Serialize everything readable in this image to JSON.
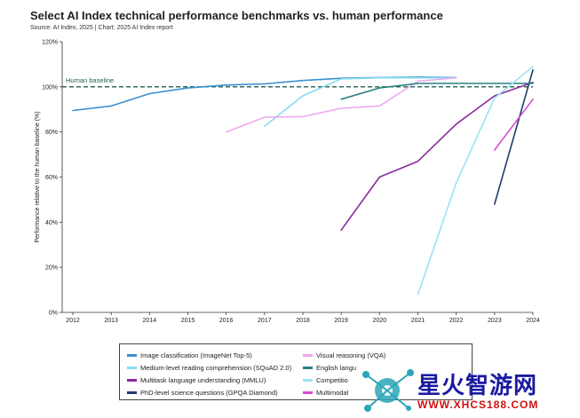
{
  "header": {
    "title": "Select AI Index technical performance benchmarks vs. human performance",
    "subtitle": "Source: AI Index, 2025 | Chart: 2025 AI Index report"
  },
  "chart_data": {
    "type": "line",
    "ylabel": "Performance relative to the human baseline (%)",
    "xlabel": "",
    "x": [
      2012,
      2013,
      2014,
      2015,
      2016,
      2017,
      2018,
      2019,
      2020,
      2021,
      2022,
      2023,
      2024
    ],
    "xticks": [
      "2012",
      "2013",
      "2014",
      "2015",
      "2016",
      "2017",
      "2018",
      "2019",
      "2020",
      "2021",
      "2022",
      "2023",
      "2024"
    ],
    "yticks": [
      "0%",
      "20%",
      "40%",
      "60%",
      "80%",
      "100%",
      "120%"
    ],
    "ylim": [
      0,
      120
    ],
    "baseline": {
      "label": "Human baseline",
      "value": 100,
      "color": "#1f5f4f"
    },
    "grid": false,
    "legend_placement": "bottom",
    "series": [
      {
        "name": "Image classification (ImageNet Top-5)",
        "color": "#3a8fd0",
        "points": [
          [
            2012,
            89.5
          ],
          [
            2013,
            91.5
          ],
          [
            2014,
            97
          ],
          [
            2015,
            99.5
          ],
          [
            2016,
            100.8
          ],
          [
            2017,
            101.3
          ],
          [
            2018,
            102.8
          ],
          [
            2019,
            103.8
          ],
          [
            2020,
            104.1
          ],
          [
            2021,
            104.3
          ],
          [
            2022,
            104.1
          ]
        ]
      },
      {
        "name": "Medium-level reading comprehension (SQuAD 2.0)",
        "color": "#86ddf0",
        "points": [
          [
            2017,
            82.5
          ],
          [
            2018,
            96
          ],
          [
            2019,
            103.5
          ],
          [
            2020,
            104
          ],
          [
            2021,
            104
          ],
          [
            2022,
            104
          ]
        ]
      },
      {
        "name": "Multitask language understanding (MMLU)",
        "color": "#8b2a9e",
        "points": [
          [
            2019,
            36.5
          ],
          [
            2020,
            60
          ],
          [
            2021,
            67
          ],
          [
            2022,
            83.5
          ],
          [
            2023,
            96
          ],
          [
            2024,
            102
          ]
        ]
      },
      {
        "name": "PhD-level science questions (GPQA Diamond)",
        "color": "#223a6e",
        "points": [
          [
            2023,
            48
          ],
          [
            2024,
            107.5
          ]
        ]
      },
      {
        "name": "Visual reasoning (VQA)",
        "color": "#f0a8f0",
        "points": [
          [
            2016,
            80
          ],
          [
            2017,
            86.5
          ],
          [
            2018,
            86.8
          ],
          [
            2019,
            90.5
          ],
          [
            2020,
            91.5
          ],
          [
            2021,
            102.5
          ],
          [
            2022,
            104
          ]
        ]
      },
      {
        "name": "English language understanding (SuperGLUE)",
        "color": "#2a8080",
        "points": [
          [
            2019,
            94.5
          ],
          [
            2020,
            99.5
          ],
          [
            2021,
            101.5
          ],
          [
            2022,
            101.5
          ],
          [
            2023,
            101.5
          ],
          [
            2024,
            101.5
          ]
        ]
      },
      {
        "name": "Competition-level mathematics (MATH)",
        "color": "#9ae4ee",
        "points": [
          [
            2021,
            8
          ],
          [
            2022,
            57.5
          ],
          [
            2023,
            95
          ],
          [
            2024,
            109
          ]
        ]
      },
      {
        "name": "Multimodal understanding and reasoning (MMMU)",
        "color": "#d44fd4",
        "points": [
          [
            2023,
            72
          ],
          [
            2024,
            94.5
          ]
        ]
      }
    ],
    "legend_labels": [
      "Image classification (ImageNet Top-5)",
      "Medium-level reading comprehension (SQuAD 2.0)",
      "Multitask language understanding (MMLU)",
      "PhD-level science questions (GPQA Diamond)",
      "Visual reasoning (VQA)",
      "English langu",
      "Competitio",
      "Multimodal"
    ]
  },
  "watermark": {
    "text": "星火智游网",
    "url": "WWW.XHCS188.COM"
  }
}
